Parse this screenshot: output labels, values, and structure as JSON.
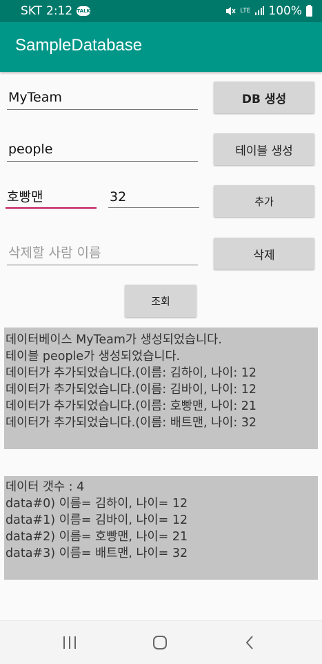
{
  "status": {
    "carrier": "SKT",
    "time": "2:12",
    "talk_label": "TALK",
    "network": "LTE",
    "battery": "100%"
  },
  "app_bar": {
    "title": "SampleDatabase"
  },
  "form": {
    "db_name": "MyTeam",
    "db_button": "DB 생성",
    "table_name": "people",
    "table_button": "테이블 생성",
    "person_name": "호빵맨",
    "person_age": "32",
    "add_button": "추가",
    "delete_placeholder": "삭제할 사람 이름",
    "delete_button": "삭제",
    "query_button": "조회"
  },
  "log": [
    "데이터베이스 MyTeam가 생성되었습니다.",
    "테이블 people가 생성되었습니다.",
    "데이터가 추가되었습니다.(이름: 김하이, 나이: 12",
    "데이터가 추가되었습니다.(이름: 김바이, 나이: 12",
    "데이터가 추가되었습니다.(이름: 호빵맨, 나이: 21",
    "데이터가 추가되었습니다.(이름: 배트맨, 나이: 32"
  ],
  "results": [
    "데이터 갯수 : 4",
    "data#0) 이름= 김하이, 나이= 12",
    "data#1) 이름= 김바이, 나이= 12",
    "data#2) 이름= 호빵맨, 나이= 21",
    "data#3) 이름= 배트맨, 나이= 32"
  ],
  "icons": {
    "nav_recents": "recent-apps-icon",
    "nav_home": "home-icon",
    "nav_back": "back-icon"
  }
}
